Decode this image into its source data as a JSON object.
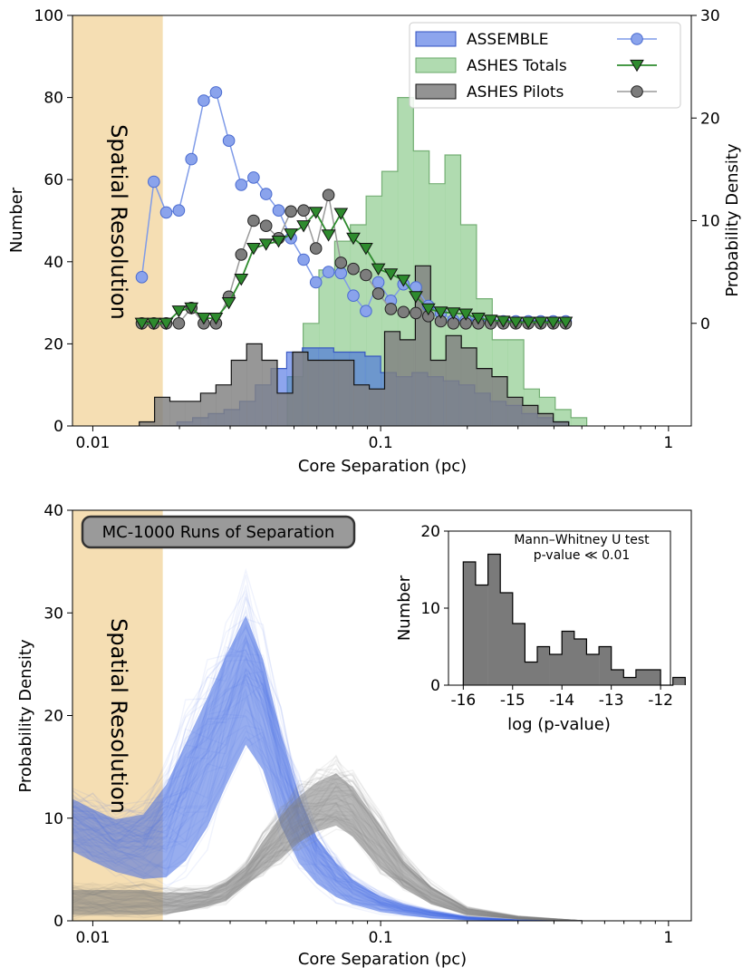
{
  "colors": {
    "spatial_band": "#f5deb3",
    "assemble": "#4169e1",
    "ashes_totals": "#2e8b2e",
    "ashes_totals_hist": "#8fcc8f",
    "ashes_pilots": "#808080",
    "triangle_fill": "#2e8b2e"
  },
  "chart_data": [
    {
      "type": "bar",
      "subtype": "step-histogram-with-density-lines",
      "xlabel": "Core Separation (pc)",
      "ylabel": "Number",
      "ylabel_right": "Probability Density",
      "xscale": "log",
      "xlim": [
        0.0085,
        1.2
      ],
      "ylim": [
        0,
        100
      ],
      "ylim_right": [
        -10,
        30
      ],
      "xticks": [
        "0.01",
        "0.1",
        "1"
      ],
      "xtick_values": [
        0.01,
        0.1,
        1
      ],
      "yticks": [
        "0",
        "20",
        "40",
        "60",
        "80",
        "100"
      ],
      "yticks_right": [
        "0",
        "10",
        "20",
        "30"
      ],
      "ytick_right_values": [
        0,
        10,
        20,
        30
      ],
      "spatial_resolution": {
        "label": "Spatial Resolution",
        "x_max": 0.0175
      },
      "legend": {
        "position": "top-right",
        "entries": [
          "ASSEMBLE",
          "ASHES Totals",
          "ASHES Pilots"
        ]
      },
      "histograms": [
        {
          "name": "ASSEMBLE",
          "x_start": 0.0173,
          "x_end": 0.45,
          "bins": 26,
          "values": [
            0,
            1,
            2,
            3,
            4,
            6,
            10,
            14,
            18,
            19,
            19,
            18,
            18,
            17,
            13,
            12,
            13,
            12,
            11,
            10,
            8,
            6,
            5,
            3,
            2,
            1
          ]
        },
        {
          "name": "ASHES Totals",
          "x_start": 0.0173,
          "x_end": 0.52,
          "bins": 27,
          "values": [
            0,
            0,
            0,
            0,
            0,
            0,
            0,
            0,
            12,
            25,
            38,
            45,
            49,
            56,
            62,
            80,
            67,
            59,
            66,
            49,
            31,
            21,
            21,
            9,
            7,
            4,
            2
          ]
        },
        {
          "name": "ASHES Pilots",
          "x_start": 0.0145,
          "x_end": 0.45,
          "bins": 28,
          "values": [
            1,
            7,
            6,
            6,
            8,
            10,
            16,
            20,
            16,
            8,
            18,
            16,
            16,
            16,
            10,
            9,
            23,
            21,
            39,
            16,
            22,
            19,
            14,
            12,
            7,
            5,
            3,
            1
          ]
        }
      ],
      "series": [
        {
          "name": "ASSEMBLE",
          "marker": "circle",
          "x": [
            0.0148,
            0.0163,
            0.018,
            0.0199,
            0.022,
            0.0243,
            0.0268,
            0.0297,
            0.0328,
            0.0362,
            0.04,
            0.0442,
            0.0488,
            0.054,
            0.0596,
            0.0659,
            0.0728,
            0.0804,
            0.0889,
            0.0982,
            0.1085,
            0.12,
            0.1325,
            0.1465,
            0.1618,
            0.1789,
            0.1977,
            0.2184,
            0.2413,
            0.2667,
            0.2947,
            0.3257,
            0.3599,
            0.3977,
            0.4395
          ],
          "values": [
            4.5,
            13.8,
            10.8,
            11,
            16,
            21.7,
            22.5,
            17.8,
            13.5,
            14.2,
            12.6,
            11,
            8.3,
            6.2,
            4,
            5,
            4.9,
            2.7,
            1.2,
            4,
            2.2,
            3.8,
            3.5,
            1.7,
            1,
            0.3,
            0.3,
            0.3,
            0.2,
            0.2,
            0.2,
            0.2,
            0.2,
            0.2,
            0.2
          ]
        },
        {
          "name": "ASHES Totals",
          "marker": "triangle-down",
          "x": [
            0.0148,
            0.0163,
            0.018,
            0.0199,
            0.022,
            0.0243,
            0.0268,
            0.0297,
            0.0328,
            0.0362,
            0.04,
            0.0442,
            0.0488,
            0.054,
            0.0596,
            0.0659,
            0.0728,
            0.0804,
            0.0889,
            0.0982,
            0.1085,
            0.12,
            0.1325,
            0.1465,
            0.1618,
            0.1789,
            0.1977,
            0.2184,
            0.2413,
            0.2667,
            0.2947,
            0.3257,
            0.3599,
            0.3977,
            0.4395
          ],
          "values": [
            0,
            0,
            0,
            1.2,
            1.5,
            0.5,
            0.5,
            2,
            4.3,
            7.3,
            7.7,
            8,
            8.7,
            9.5,
            10.8,
            8.6,
            10.7,
            8.3,
            7.3,
            5.3,
            4.8,
            4.2,
            2.6,
            1.4,
            1.1,
            1,
            0.9,
            0.5,
            0.3,
            0.2,
            0.1,
            0.1,
            0.1,
            0.1,
            0.1
          ]
        },
        {
          "name": "ASHES Pilots",
          "marker": "circle",
          "x": [
            0.0148,
            0.0163,
            0.018,
            0.0199,
            0.022,
            0.0243,
            0.0268,
            0.0297,
            0.0328,
            0.0362,
            0.04,
            0.0442,
            0.0488,
            0.054,
            0.0596,
            0.0659,
            0.0728,
            0.0804,
            0.0889,
            0.0982,
            0.1085,
            0.12,
            0.1325,
            0.1465,
            0.1618,
            0.1789,
            0.1977,
            0.2184,
            0.2413,
            0.2667,
            0.2947,
            0.3257,
            0.3599,
            0.3977,
            0.4395
          ],
          "values": [
            0,
            0,
            0,
            0,
            1.5,
            0,
            0,
            2.6,
            6.7,
            10,
            9.5,
            8.3,
            10.9,
            11,
            7.3,
            12.5,
            5.9,
            5.3,
            4.7,
            2.9,
            1.4,
            1.1,
            1,
            0.7,
            0.2,
            0,
            0,
            0,
            0,
            0,
            0,
            0,
            0,
            0,
            0
          ]
        }
      ]
    },
    {
      "type": "line",
      "subtype": "monte-carlo-density-runs",
      "annotation_box": "MC-1000 Runs of Separation",
      "xlabel": "Core Separation (pc)",
      "ylabel": "Probability Density",
      "xscale": "log",
      "xlim": [
        0.0085,
        1.2
      ],
      "ylim": [
        0,
        40
      ],
      "xticks": [
        "0.01",
        "0.1",
        "1"
      ],
      "xtick_values": [
        0.01,
        0.1,
        1
      ],
      "yticks": [
        "0",
        "10",
        "20",
        "30",
        "40"
      ],
      "spatial_resolution": {
        "label": "Spatial Resolution",
        "x_max": 0.0175
      },
      "series": [
        {
          "name": "",
          "color": "blue",
          "x": [
            0.0085,
            0.01,
            0.012,
            0.015,
            0.018,
            0.021,
            0.025,
            0.029,
            0.034,
            0.039,
            0.045,
            0.052,
            0.06,
            0.07,
            0.08,
            0.1,
            0.12,
            0.15,
            0.2,
            0.3,
            0.5
          ],
          "low": [
            5.5,
            4.5,
            3.5,
            2.5,
            2,
            3,
            6,
            10,
            14,
            12,
            7,
            4,
            2.5,
            1.5,
            1,
            0.5,
            0.3,
            0.1,
            0,
            0,
            0
          ],
          "high": [
            14,
            13,
            12,
            13,
            17,
            22,
            27,
            31,
            35,
            30,
            22,
            15,
            10,
            7,
            5,
            3,
            2,
            1.2,
            0.5,
            0.1,
            0
          ]
        },
        {
          "name": "",
          "color": "gray",
          "x": [
            0.0085,
            0.01,
            0.012,
            0.015,
            0.018,
            0.021,
            0.025,
            0.029,
            0.034,
            0.039,
            0.045,
            0.052,
            0.06,
            0.07,
            0.08,
            0.1,
            0.12,
            0.15,
            0.2,
            0.3,
            0.5
          ],
          "low": [
            0,
            0,
            0,
            0,
            0.2,
            0.5,
            1,
            1.5,
            3,
            4,
            5,
            6.5,
            7.5,
            8,
            7,
            4,
            2.5,
            1.2,
            0.4,
            0.1,
            0
          ],
          "high": [
            4,
            4,
            4,
            4,
            3.5,
            3.5,
            3.5,
            4.5,
            6,
            9,
            12,
            14,
            15.5,
            16.5,
            15,
            11,
            7,
            4,
            1.5,
            0.5,
            0
          ]
        }
      ],
      "inset": {
        "type": "bar",
        "subtype": "histogram",
        "title_lines": [
          "Mann–Whitney U test",
          "p-value ≪ 0.01"
        ],
        "xlabel": "log (p-value)",
        "ylabel": "Number",
        "xlim": [
          -16.3,
          -11.8
        ],
        "ylim": [
          0,
          20
        ],
        "xticks": [
          "-16",
          "-15",
          "-14",
          "-13",
          "-12"
        ],
        "xtick_values": [
          -16,
          -15,
          -14,
          -13,
          -12
        ],
        "yticks": [
          "0",
          "10",
          "20"
        ],
        "x_start": -16.0,
        "bin_width": 0.25,
        "values": [
          16,
          13,
          17,
          12,
          8,
          3,
          5,
          4,
          7,
          6,
          4,
          5,
          2,
          1,
          2,
          2,
          0,
          1
        ]
      }
    }
  ]
}
